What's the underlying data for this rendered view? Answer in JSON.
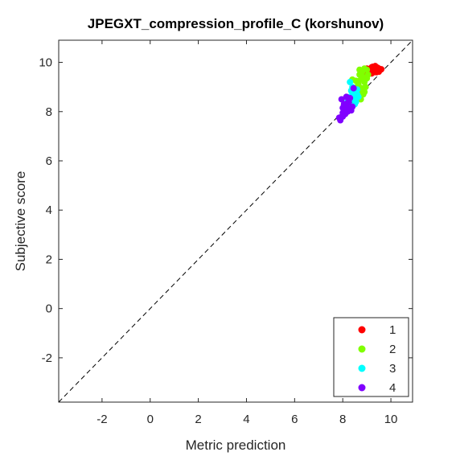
{
  "chart_data": {
    "type": "scatter",
    "title": "JPEGXT_compression_profile_C (korshunov)",
    "xlabel": "Metric prediction",
    "ylabel": "Subjective score",
    "xlim": [
      -3.8,
      10.9
    ],
    "ylim": [
      -3.8,
      10.9
    ],
    "xticks": [
      -2,
      0,
      2,
      4,
      6,
      8,
      10
    ],
    "yticks": [
      -2,
      0,
      2,
      4,
      6,
      8,
      10
    ],
    "xtick_labels": [
      "-2",
      "0",
      "2",
      "4",
      "6",
      "8",
      "10"
    ],
    "ytick_labels": [
      "-2",
      "0",
      "2",
      "4",
      "6",
      "8",
      "10"
    ],
    "grid": false,
    "identity_line": true,
    "legend_position": "bottom-right",
    "series": [
      {
        "name": "1",
        "color": "#ff0000",
        "x": [
          9.0,
          9.1,
          9.2,
          9.25,
          9.3,
          9.35,
          9.4,
          9.45,
          9.5,
          9.55,
          9.3,
          9.2,
          9.4,
          9.5,
          9.35,
          9.25,
          9.45,
          9.15,
          9.6,
          8.95
        ],
        "y": [
          9.75,
          9.7,
          9.8,
          9.65,
          9.75,
          9.7,
          9.8,
          9.65,
          9.75,
          9.7,
          9.6,
          9.55,
          9.6,
          9.62,
          9.85,
          9.82,
          9.78,
          9.68,
          9.72,
          9.6
        ]
      },
      {
        "name": "2",
        "color": "#80ff00",
        "x": [
          8.7,
          8.8,
          8.9,
          9.0,
          9.05,
          8.85,
          8.75,
          8.9,
          8.65,
          9.0,
          8.95,
          8.8,
          8.6,
          8.7,
          8.85,
          8.75,
          8.9,
          8.4,
          8.55,
          8.7
        ],
        "y": [
          9.7,
          9.6,
          9.75,
          9.7,
          9.5,
          9.4,
          9.3,
          9.2,
          9.1,
          9.35,
          9.0,
          8.95,
          9.0,
          8.8,
          8.7,
          8.5,
          8.8,
          9.3,
          9.25,
          9.5
        ]
      },
      {
        "name": "3",
        "color": "#00ffff",
        "x": [
          8.3,
          8.4,
          8.5,
          8.6,
          8.45,
          8.35,
          8.55,
          8.25,
          8.4,
          8.5,
          8.6,
          8.3,
          8.2,
          8.45,
          8.5,
          8.65,
          8.35
        ],
        "y": [
          9.2,
          9.0,
          8.9,
          8.7,
          8.6,
          8.5,
          8.4,
          8.3,
          8.2,
          8.5,
          8.9,
          8.6,
          8.4,
          8.75,
          8.3,
          8.6,
          8.85
        ]
      },
      {
        "name": "4",
        "color": "#8000ff",
        "x": [
          7.9,
          8.0,
          8.1,
          8.2,
          8.3,
          8.15,
          8.05,
          7.95,
          8.25,
          8.4,
          8.1,
          8.0,
          8.3,
          8.2,
          8.35,
          8.45,
          8.15,
          8.0,
          7.85
        ],
        "y": [
          7.65,
          7.8,
          7.9,
          8.0,
          8.1,
          8.2,
          8.3,
          8.5,
          8.4,
          8.2,
          8.05,
          7.95,
          8.55,
          8.35,
          8.05,
          8.95,
          8.6,
          8.15,
          7.75
        ]
      }
    ]
  }
}
